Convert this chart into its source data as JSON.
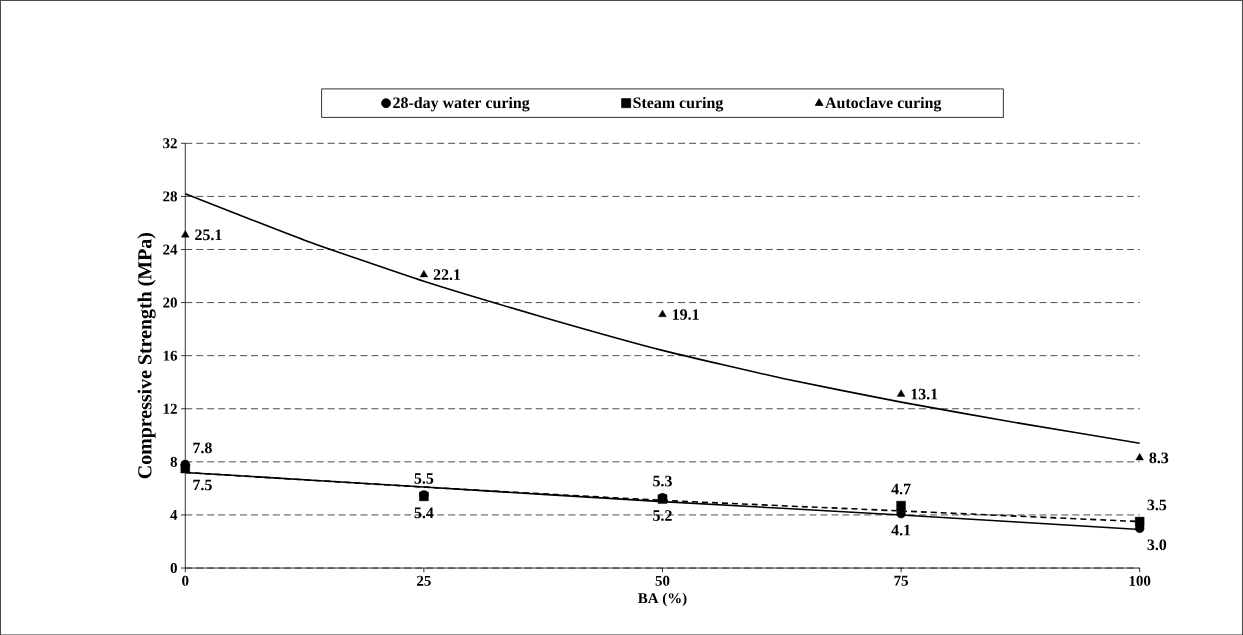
{
  "chart_data": {
    "type": "scatter",
    "xlabel": "BA (%)",
    "ylabel": "Compressive Strength (MPa)",
    "x": [
      0,
      25,
      50,
      75,
      100
    ],
    "series": [
      {
        "name": "28-day water curing",
        "color": "#000000",
        "marker": "circle",
        "values": [
          7.8,
          5.5,
          5.3,
          4.1,
          3.0
        ],
        "value_labels": [
          "7.8",
          "5.5",
          "5.3",
          "4.1",
          "3.0"
        ]
      },
      {
        "name": "Steam curing",
        "color": "#000000",
        "marker": "square",
        "values": [
          7.5,
          5.4,
          5.2,
          4.7,
          3.5
        ],
        "value_labels": [
          "7.5",
          "5.4",
          "5.2",
          "4.7",
          "3.5"
        ]
      },
      {
        "name": "Autoclave curing",
        "color": "#000000",
        "marker": "triangle",
        "values": [
          25.1,
          22.1,
          19.1,
          13.1,
          8.3
        ],
        "value_labels": [
          "25.1",
          "22.1",
          "19.1",
          "13.1",
          "8.3"
        ]
      },
      {
        "type": "line",
        "color": "#000000",
        "line_style": "solid",
        "x": [
          0,
          12.5,
          25,
          37.5,
          50,
          62.5,
          75,
          87.5,
          100
        ],
        "values": [
          28.2,
          24.7,
          21.6,
          18.9,
          16.4,
          14.3,
          12.5,
          10.9,
          9.4
        ]
      },
      {
        "type": "line",
        "color": "#000000",
        "line_style": "solid",
        "x": [
          0,
          25,
          50,
          75,
          100
        ],
        "values": [
          7.2,
          6.1,
          5.0,
          4.0,
          2.9
        ]
      },
      {
        "type": "line",
        "color": "#000000",
        "line_style": "dashed",
        "x": [
          0,
          25,
          50,
          75,
          100
        ],
        "values": [
          7.2,
          6.1,
          5.1,
          4.3,
          3.5
        ]
      }
    ],
    "xlim": [
      0,
      100
    ],
    "xticks": [
      0,
      25,
      50,
      75,
      100
    ],
    "ylim": [
      0,
      32
    ],
    "yticks": [
      0,
      4,
      8,
      12,
      16,
      20,
      24,
      28,
      32
    ],
    "grid": "y",
    "legend": "top"
  }
}
